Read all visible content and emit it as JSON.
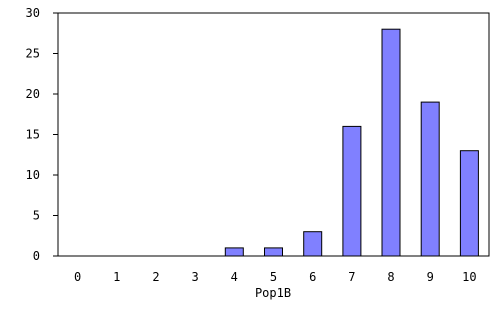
{
  "chart_data": {
    "type": "bar",
    "categories": [
      "0",
      "1",
      "2",
      "3",
      "4",
      "5",
      "6",
      "7",
      "8",
      "9",
      "10"
    ],
    "values": [
      0,
      0,
      0,
      0,
      1,
      1,
      3,
      16,
      28,
      19,
      13
    ],
    "title": "",
    "xlabel": "Pop1B",
    "ylabel": "",
    "ylim": [
      0,
      30
    ],
    "yticks": [
      "0",
      "5",
      "10",
      "15",
      "20",
      "25",
      "30"
    ],
    "grid": false,
    "legend": "none",
    "colors": {
      "bar_fill": "#8080ff",
      "bar_stroke": "#000000",
      "axis": "#000000",
      "background": "#ffffff"
    }
  }
}
